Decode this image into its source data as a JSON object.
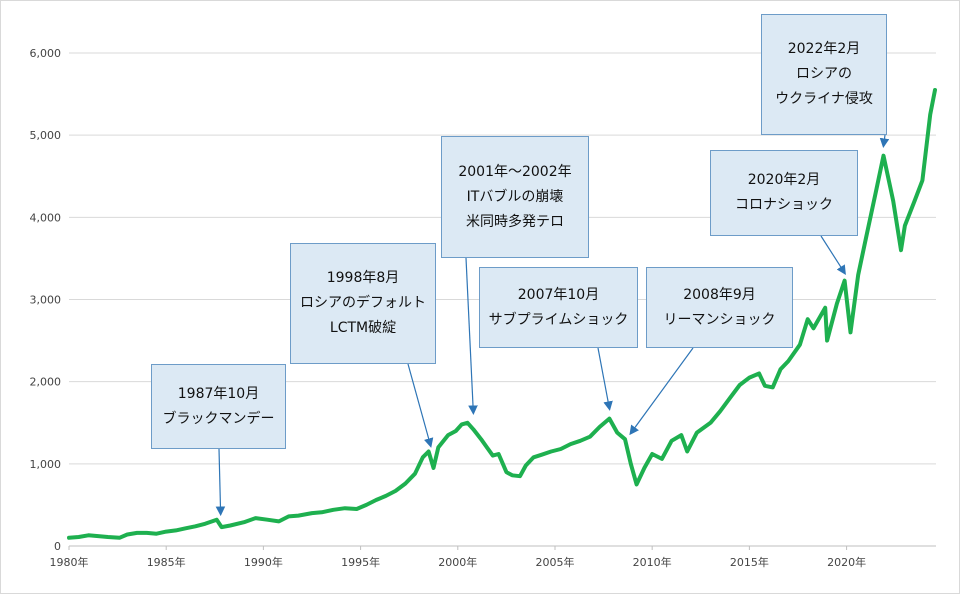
{
  "colors": {
    "series": "#1eb04f",
    "box_fill": "#dce9f4",
    "box_border": "#6d9cc8",
    "arrow": "#2e75b6",
    "grid": "#d9d9d9"
  },
  "chart_data": {
    "type": "line",
    "title": "",
    "xlabel": "",
    "ylabel": "",
    "grid": "horizontal",
    "legend": "none",
    "ylim": [
      0,
      6000
    ],
    "xlim": [
      1980,
      2024.6
    ],
    "y_ticks": [
      "0",
      "1,000",
      "2,000",
      "3,000",
      "4,000",
      "5,000",
      "6,000"
    ],
    "y_tick_values": [
      0,
      1000,
      2000,
      3000,
      4000,
      5000,
      6000
    ],
    "x_ticks": [
      "1980年",
      "1985年",
      "1990年",
      "1995年",
      "2000年",
      "2005年",
      "2010年",
      "2015年",
      "2020年"
    ],
    "x_tick_values": [
      1980,
      1985,
      1990,
      1995,
      2000,
      2005,
      2010,
      2015,
      2020
    ],
    "series": [
      {
        "points": [
          [
            1980.0,
            100
          ],
          [
            1980.5,
            110
          ],
          [
            1981.0,
            130
          ],
          [
            1981.5,
            120
          ],
          [
            1982.0,
            110
          ],
          [
            1982.6,
            100
          ],
          [
            1983.0,
            140
          ],
          [
            1983.5,
            160
          ],
          [
            1984.0,
            160
          ],
          [
            1984.5,
            150
          ],
          [
            1985.0,
            175
          ],
          [
            1985.5,
            190
          ],
          [
            1986.0,
            215
          ],
          [
            1986.5,
            240
          ],
          [
            1987.0,
            270
          ],
          [
            1987.6,
            320
          ],
          [
            1987.85,
            230
          ],
          [
            1988.3,
            250
          ],
          [
            1989.0,
            290
          ],
          [
            1989.6,
            340
          ],
          [
            1990.2,
            320
          ],
          [
            1990.8,
            300
          ],
          [
            1991.3,
            360
          ],
          [
            1991.8,
            370
          ],
          [
            1992.5,
            400
          ],
          [
            1993.0,
            410
          ],
          [
            1993.6,
            440
          ],
          [
            1994.2,
            460
          ],
          [
            1994.8,
            450
          ],
          [
            1995.3,
            500
          ],
          [
            1995.8,
            560
          ],
          [
            1996.3,
            610
          ],
          [
            1996.8,
            670
          ],
          [
            1997.3,
            760
          ],
          [
            1997.8,
            880
          ],
          [
            1998.2,
            1080
          ],
          [
            1998.5,
            1150
          ],
          [
            1998.75,
            950
          ],
          [
            1999.0,
            1200
          ],
          [
            1999.5,
            1350
          ],
          [
            1999.9,
            1400
          ],
          [
            2000.2,
            1480
          ],
          [
            2000.5,
            1500
          ],
          [
            2000.8,
            1420
          ],
          [
            2001.2,
            1300
          ],
          [
            2001.5,
            1200
          ],
          [
            2001.8,
            1100
          ],
          [
            2002.1,
            1120
          ],
          [
            2002.5,
            900
          ],
          [
            2002.8,
            860
          ],
          [
            2003.2,
            850
          ],
          [
            2003.5,
            980
          ],
          [
            2003.9,
            1080
          ],
          [
            2004.3,
            1110
          ],
          [
            2004.8,
            1150
          ],
          [
            2005.3,
            1180
          ],
          [
            2005.8,
            1240
          ],
          [
            2006.3,
            1280
          ],
          [
            2006.8,
            1330
          ],
          [
            2007.3,
            1450
          ],
          [
            2007.8,
            1550
          ],
          [
            2008.2,
            1380
          ],
          [
            2008.6,
            1300
          ],
          [
            2008.9,
            1000
          ],
          [
            2009.2,
            750
          ],
          [
            2009.6,
            950
          ],
          [
            2010.0,
            1120
          ],
          [
            2010.5,
            1060
          ],
          [
            2011.0,
            1280
          ],
          [
            2011.5,
            1350
          ],
          [
            2011.8,
            1150
          ],
          [
            2012.3,
            1380
          ],
          [
            2013.0,
            1500
          ],
          [
            2013.5,
            1640
          ],
          [
            2014.0,
            1800
          ],
          [
            2014.5,
            1960
          ],
          [
            2015.0,
            2050
          ],
          [
            2015.5,
            2100
          ],
          [
            2015.8,
            1950
          ],
          [
            2016.2,
            1930
          ],
          [
            2016.6,
            2150
          ],
          [
            2017.0,
            2250
          ],
          [
            2017.6,
            2450
          ],
          [
            2018.0,
            2760
          ],
          [
            2018.3,
            2650
          ],
          [
            2018.9,
            2900
          ],
          [
            2019.0,
            2500
          ],
          [
            2019.5,
            2950
          ],
          [
            2019.9,
            3230
          ],
          [
            2020.2,
            2600
          ],
          [
            2020.6,
            3300
          ],
          [
            2021.0,
            3750
          ],
          [
            2021.5,
            4300
          ],
          [
            2021.9,
            4750
          ],
          [
            2022.4,
            4200
          ],
          [
            2022.8,
            3600
          ],
          [
            2023.0,
            3900
          ],
          [
            2023.5,
            4200
          ],
          [
            2023.9,
            4450
          ],
          [
            2024.3,
            5250
          ],
          [
            2024.55,
            5550
          ]
        ]
      }
    ],
    "annotations": [
      {
        "lines": [
          "1987年10月",
          "ブラックマンデー"
        ],
        "x": 1987.8,
        "y": 320
      },
      {
        "lines": [
          "1998年8月",
          "ロシアのデフォルト",
          "LCTM破綻"
        ],
        "x": 1998.6,
        "y": 1150
      },
      {
        "lines": [
          "2001年～2002年",
          "ITバブルの崩壊",
          "米同時多発テロ"
        ],
        "x": 2000.8,
        "y": 1550
      },
      {
        "lines": [
          "2007年10月",
          "サブプライムショック"
        ],
        "x": 2007.8,
        "y": 1600
      },
      {
        "lines": [
          "2008年9月",
          "リーマンショック"
        ],
        "x": 2008.9,
        "y": 1300
      },
      {
        "lines": [
          "2020年2月",
          "コロナショック"
        ],
        "x": 2019.9,
        "y": 3250
      },
      {
        "lines": [
          "2022年2月",
          "ロシアの",
          "ウクライナ侵攻"
        ],
        "x": 2021.9,
        "y": 4800
      }
    ]
  }
}
